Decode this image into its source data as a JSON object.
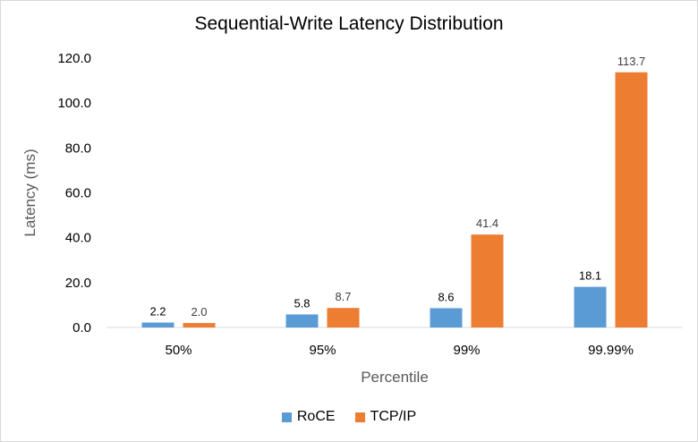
{
  "chart_data": {
    "type": "bar",
    "title": "Sequential-Write Latency Distribution",
    "xlabel": "Percentile",
    "ylabel": "Latency (ms)",
    "categories": [
      "50%",
      "95%",
      "99%",
      "99.99%"
    ],
    "series": [
      {
        "name": "RoCE",
        "values": [
          2.2,
          5.8,
          8.6,
          18.1
        ],
        "color": "#5b9bd5"
      },
      {
        "name": "TCP/IP",
        "values": [
          2.0,
          8.7,
          41.4,
          113.7
        ],
        "color": "#ed7d31"
      }
    ],
    "data_labels": [
      [
        "2.2",
        "5.8",
        "8.6",
        "18.1"
      ],
      [
        "2.0",
        "8.7",
        "41.4",
        "113.7"
      ]
    ],
    "ylim": [
      0,
      120
    ],
    "yticks": [
      "0.0",
      "20.0",
      "40.0",
      "60.0",
      "80.0",
      "100.0",
      "120.0"
    ],
    "grid": false,
    "legend_position": "bottom"
  }
}
